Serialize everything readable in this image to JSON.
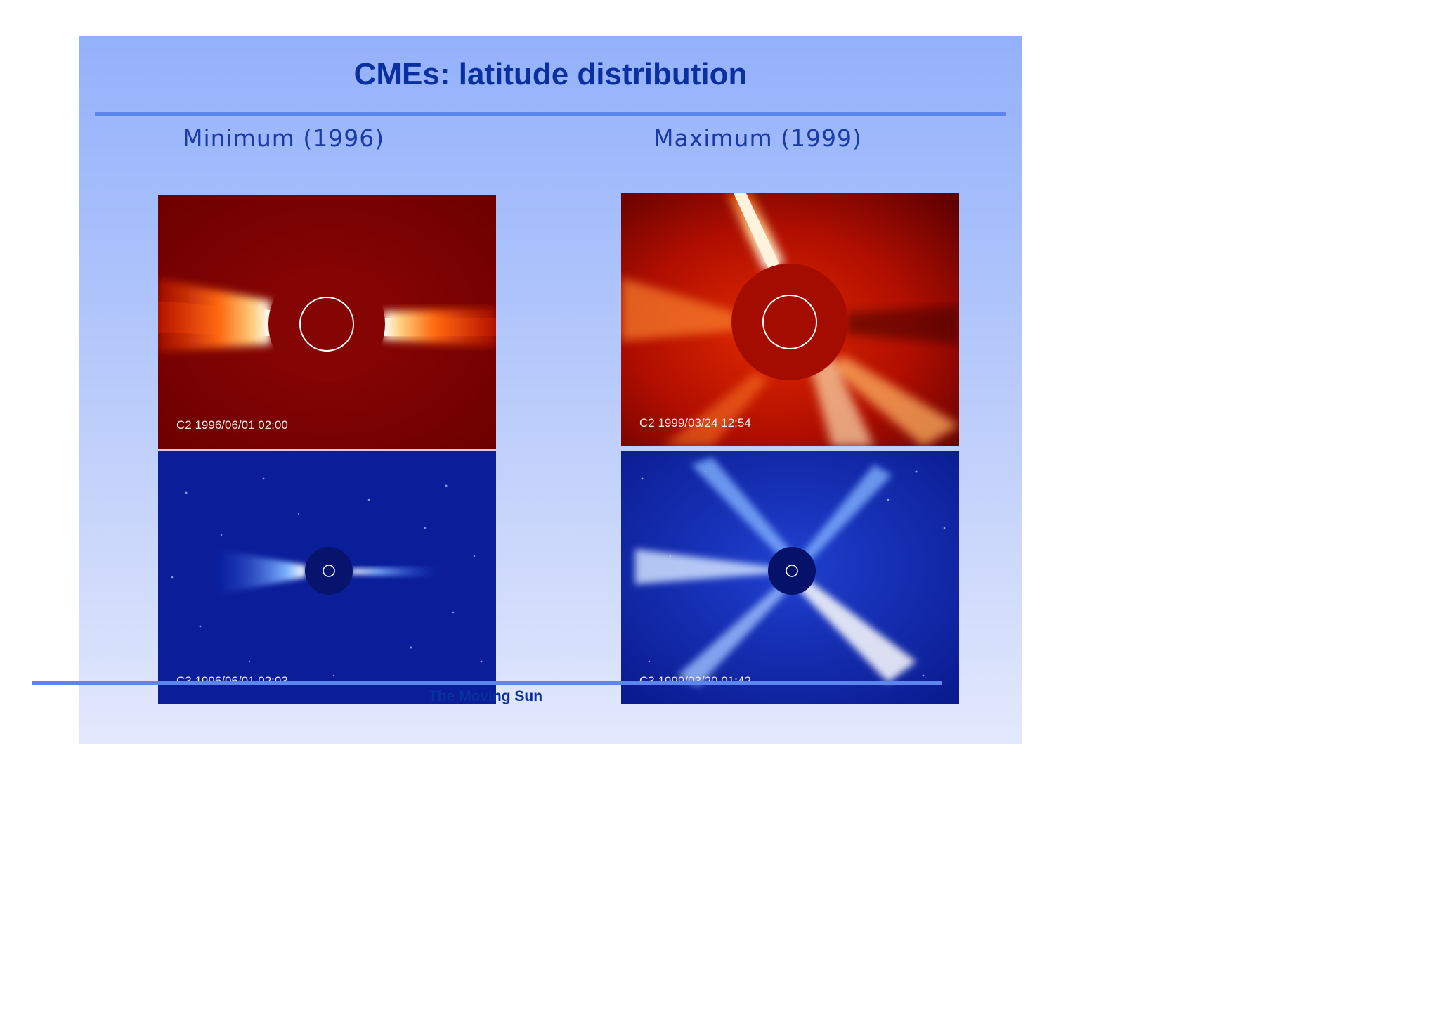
{
  "slide": {
    "title": "CMEs: latitude distribution",
    "footer": "The Moving Sun"
  },
  "columns": [
    {
      "heading": "Minimum (1996)",
      "images": [
        {
          "caption": "C2 1996/06/01 02:00",
          "palette": "red"
        },
        {
          "caption": "C3 1996/06/01 02:03",
          "palette": "blue"
        }
      ]
    },
    {
      "heading": "Maximum (1999)",
      "images": [
        {
          "caption": "C2 1999/03/24 12:54",
          "palette": "red"
        },
        {
          "caption": "C3 1999/03/20 01:42",
          "palette": "blue"
        }
      ]
    }
  ],
  "colors": {
    "title": "#0a2f9e",
    "rule": "#5d85ee",
    "c2_background": "#7a0000",
    "c3_background": "#0a1d9a"
  }
}
